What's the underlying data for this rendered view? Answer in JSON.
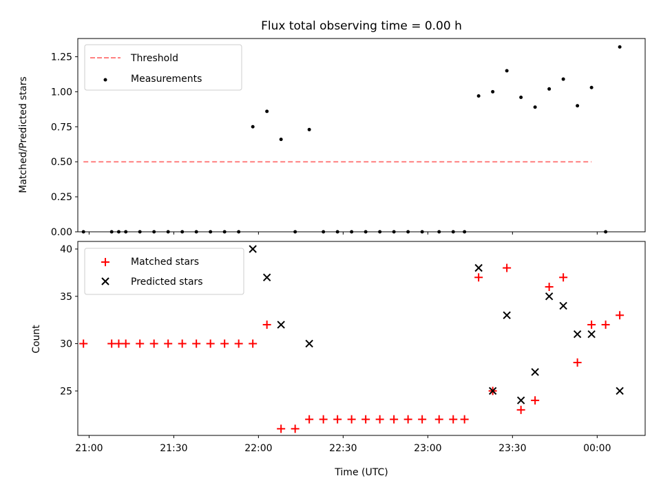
{
  "chart_data": [
    {
      "type": "scatter",
      "title": "Flux total observing time = 0.00 h",
      "xlabel": "",
      "ylabel": "Matched/Predicted stars",
      "xlim": [
        "20:56",
        "00:17"
      ],
      "ylim": [
        0,
        1.38
      ],
      "yticks": [
        "0.00",
        "0.25",
        "0.50",
        "0.75",
        "1.00",
        "1.25"
      ],
      "grid": false,
      "legend_position": "upper-left",
      "threshold": {
        "name": "Threshold",
        "color": "#ff7f7f",
        "style": "dashed",
        "value": 0.5,
        "x": [
          "20:58",
          "23:58"
        ]
      },
      "series": [
        {
          "name": "Measurements",
          "color": "#000000",
          "marker": "dot",
          "points": [
            [
              "20:58",
              0.0
            ],
            [
              "21:08",
              0.0
            ],
            [
              "21:10.5",
              0.0
            ],
            [
              "21:13",
              0.0
            ],
            [
              "21:18",
              0.0
            ],
            [
              "21:23",
              0.0
            ],
            [
              "21:28",
              0.0
            ],
            [
              "21:33",
              0.0
            ],
            [
              "21:38",
              0.0
            ],
            [
              "21:43",
              0.0
            ],
            [
              "21:48",
              0.0
            ],
            [
              "21:53",
              0.0
            ],
            [
              "21:58",
              0.75
            ],
            [
              "22:03",
              0.86
            ],
            [
              "22:08",
              0.66
            ],
            [
              "22:13",
              0.0
            ],
            [
              "22:18",
              0.73
            ],
            [
              "22:23",
              0.0
            ],
            [
              "22:28",
              0.0
            ],
            [
              "22:33",
              0.0
            ],
            [
              "22:38",
              0.0
            ],
            [
              "22:43",
              0.0
            ],
            [
              "22:48",
              0.0
            ],
            [
              "22:53",
              0.0
            ],
            [
              "22:58",
              0.0
            ],
            [
              "23:04",
              0.0
            ],
            [
              "23:09",
              0.0
            ],
            [
              "23:13",
              0.0
            ],
            [
              "23:18",
              0.97
            ],
            [
              "23:23",
              1.0
            ],
            [
              "23:28",
              1.15
            ],
            [
              "23:33",
              0.96
            ],
            [
              "23:38",
              0.89
            ],
            [
              "23:43",
              1.02
            ],
            [
              "23:48",
              1.09
            ],
            [
              "23:53",
              0.9
            ],
            [
              "23:58",
              1.03
            ],
            [
              "00:03",
              0.0
            ],
            [
              "00:08",
              1.32
            ]
          ]
        }
      ]
    },
    {
      "type": "scatter",
      "title": "",
      "xlabel": "Time (UTC)",
      "ylabel": "Count",
      "xlim": [
        "20:56",
        "00:17"
      ],
      "ylim": [
        20.3,
        40.8
      ],
      "yticks": [
        "25",
        "30",
        "35",
        "40"
      ],
      "xticks": [
        "21:00",
        "21:30",
        "22:00",
        "22:30",
        "23:00",
        "23:30",
        "00:00"
      ],
      "grid": false,
      "legend_position": "upper-left",
      "series": [
        {
          "name": "Matched stars",
          "color": "#ff0000",
          "marker": "plus",
          "points": [
            [
              "20:58",
              30
            ],
            [
              "21:08",
              30
            ],
            [
              "21:10.5",
              30
            ],
            [
              "21:13",
              30
            ],
            [
              "21:18",
              30
            ],
            [
              "21:23",
              30
            ],
            [
              "21:28",
              30
            ],
            [
              "21:33",
              30
            ],
            [
              "21:38",
              30
            ],
            [
              "21:43",
              30
            ],
            [
              "21:48",
              30
            ],
            [
              "21:53",
              30
            ],
            [
              "21:58",
              30
            ],
            [
              "22:03",
              32
            ],
            [
              "22:08",
              21
            ],
            [
              "22:13",
              21
            ],
            [
              "22:18",
              22
            ],
            [
              "22:23",
              22
            ],
            [
              "22:28",
              22
            ],
            [
              "22:33",
              22
            ],
            [
              "22:38",
              22
            ],
            [
              "22:43",
              22
            ],
            [
              "22:48",
              22
            ],
            [
              "22:53",
              22
            ],
            [
              "22:58",
              22
            ],
            [
              "23:04",
              22
            ],
            [
              "23:09",
              22
            ],
            [
              "23:13",
              22
            ],
            [
              "23:18",
              37
            ],
            [
              "23:23",
              25
            ],
            [
              "23:28",
              38
            ],
            [
              "23:33",
              23
            ],
            [
              "23:38",
              24
            ],
            [
              "23:43",
              36
            ],
            [
              "23:48",
              37
            ],
            [
              "23:53",
              28
            ],
            [
              "23:58",
              32
            ],
            [
              "00:03",
              32
            ],
            [
              "00:08",
              33
            ]
          ]
        },
        {
          "name": "Predicted stars",
          "color": "#000000",
          "marker": "x",
          "points": [
            [
              "21:58",
              40
            ],
            [
              "22:03",
              37
            ],
            [
              "22:08",
              32
            ],
            [
              "22:18",
              30
            ],
            [
              "23:18",
              38
            ],
            [
              "23:23",
              25
            ],
            [
              "23:28",
              33
            ],
            [
              "23:33",
              24
            ],
            [
              "23:38",
              27
            ],
            [
              "23:43",
              35
            ],
            [
              "23:48",
              34
            ],
            [
              "23:53",
              31
            ],
            [
              "23:58",
              31
            ],
            [
              "00:08",
              25
            ]
          ]
        }
      ]
    }
  ]
}
